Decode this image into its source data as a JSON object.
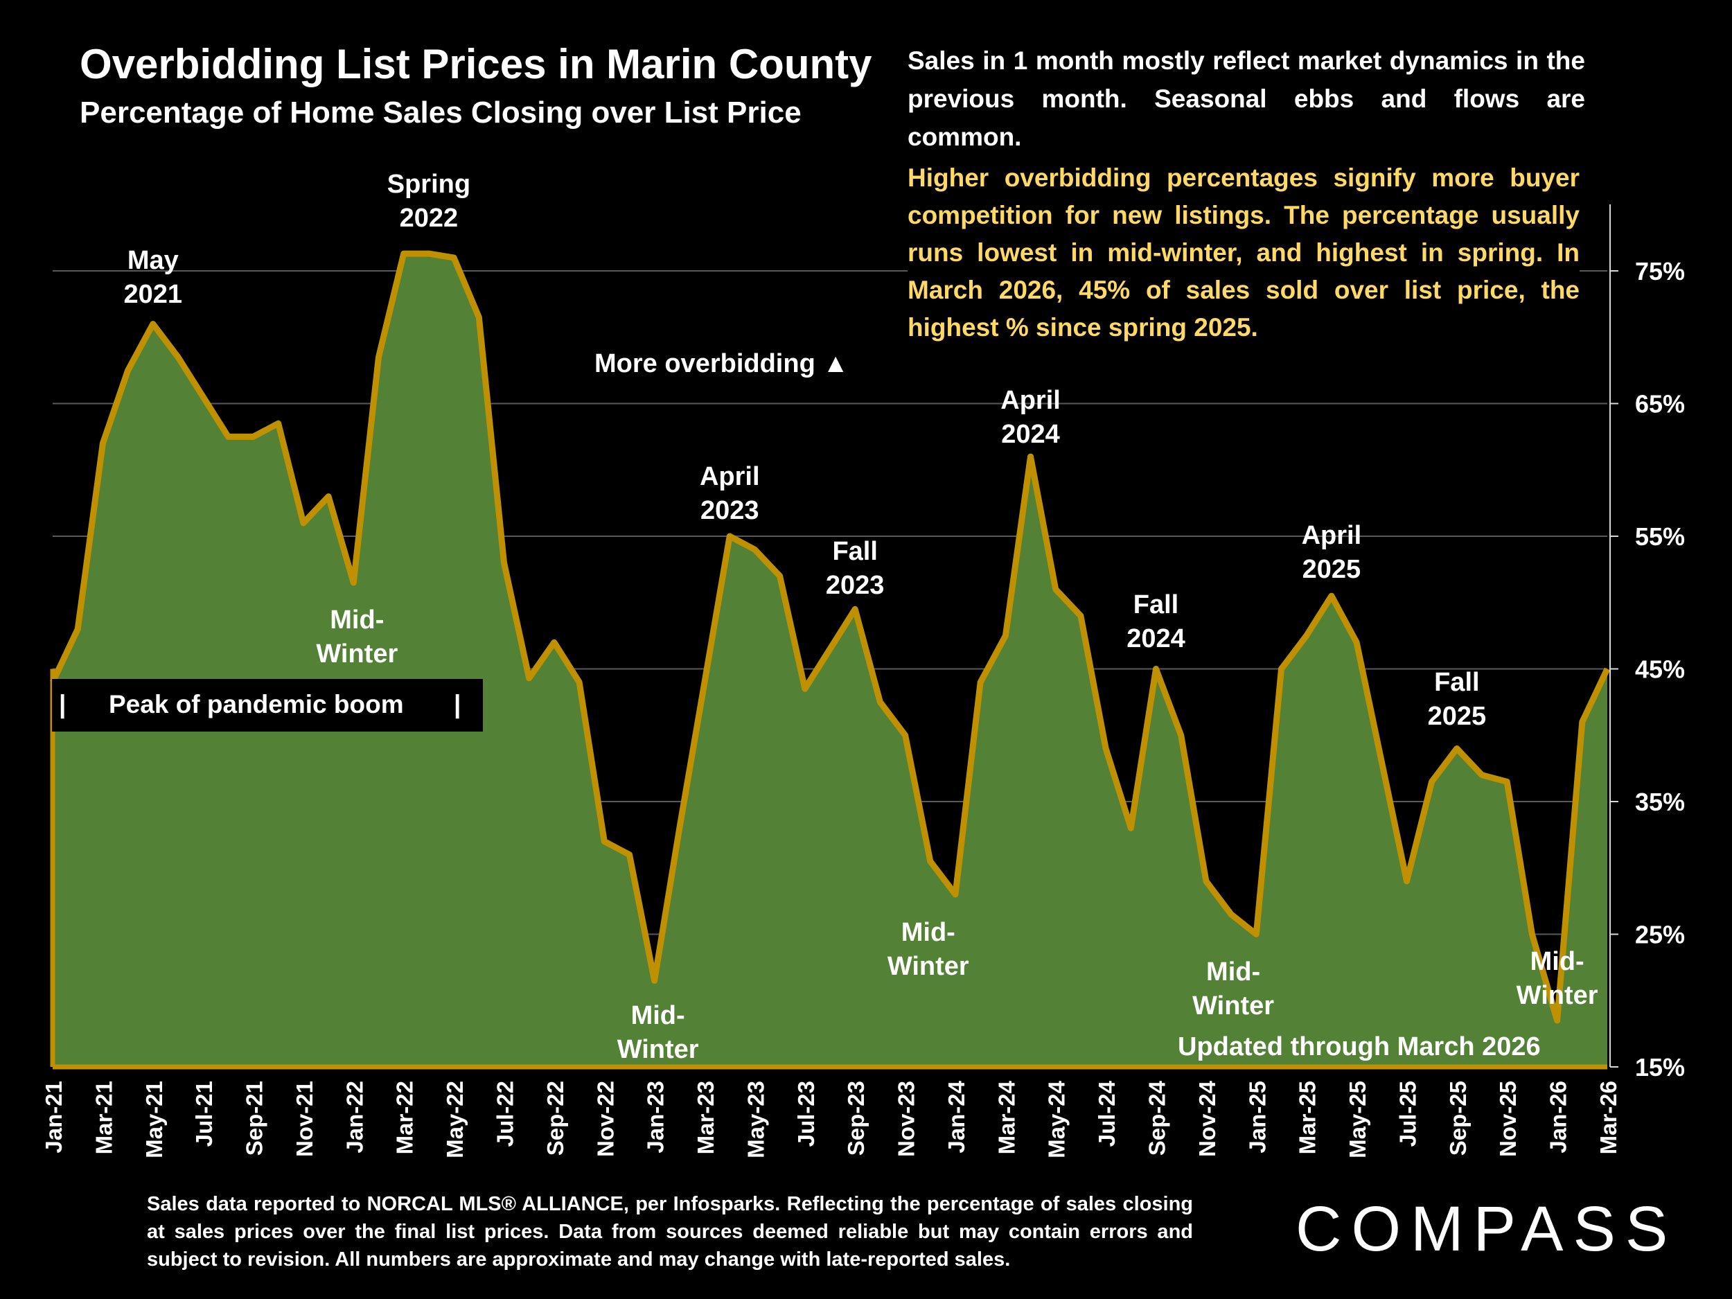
{
  "header": {
    "title": "Overbidding List Prices in Marin County",
    "subtitle": "Percentage of Home Sales Closing over List Price"
  },
  "notes": {
    "market_note": "Sales in 1 month mostly reflect market dynamics in the previous month. Seasonal ebbs and flows are common.",
    "overbidding_note": "Higher overbidding percentages signify more buyer competition for new listings. The percentage usually runs lowest in mid-winter, and highest in spring. In March 2026, 45% of sales sold over list price, the highest % since spring 2025."
  },
  "peak_label": {
    "left_bar": "|",
    "text": "Peak of pandemic boom",
    "right_bar": "|"
  },
  "footer": {
    "source": "Sales data reported to NORCAL MLS® ALLIANCE, per Infosparks. Reflecting the percentage of sales closing at sales prices over the final list prices. Data from sources deemed reliable but may contain errors and subject to revision. All numbers are approximate and may change with late-reported sales.",
    "logo": "COMPASS"
  },
  "colors": {
    "fill": "#538135",
    "line": "#BF9000",
    "highlight_text": "#FFD966",
    "background": "#000000"
  },
  "chart_data": {
    "type": "area",
    "title": "Overbidding List Prices in Marin County",
    "subtitle": "Percentage of Home Sales Closing over List Price",
    "y_axis_side": "right",
    "ylim": [
      15,
      80
    ],
    "yticks": [
      "15%",
      "25%",
      "35%",
      "45%",
      "55%",
      "65%",
      "75%"
    ],
    "ytick_values": [
      15,
      25,
      35,
      45,
      55,
      65,
      75
    ],
    "grid": true,
    "x_tick_labels": [
      "Jan-21",
      "Mar-21",
      "May-21",
      "Jul-21",
      "Sep-21",
      "Nov-21",
      "Jan-22",
      "Mar-22",
      "May-22",
      "Jul-22",
      "Sep-22",
      "Nov-22",
      "Jan-23",
      "Mar-23",
      "May-23",
      "Jul-23",
      "Sep-23",
      "Nov-23",
      "Jan-24",
      "Mar-24",
      "May-24",
      "Jul-24",
      "Sep-24",
      "Nov-24",
      "Jan-25",
      "Mar-25",
      "May-25",
      "Jul-25",
      "Sep-25",
      "Nov-25",
      "Jan-26",
      "Mar-26"
    ],
    "x": [
      "Jan-21",
      "Feb-21",
      "Mar-21",
      "Apr-21",
      "May-21",
      "Jun-21",
      "Jul-21",
      "Aug-21",
      "Sep-21",
      "Oct-21",
      "Nov-21",
      "Dec-21",
      "Jan-22",
      "Feb-22",
      "Mar-22",
      "Apr-22",
      "May-22",
      "Jun-22",
      "Jul-22",
      "Aug-22",
      "Sep-22",
      "Oct-22",
      "Nov-22",
      "Dec-22",
      "Jan-23",
      "Feb-23",
      "Mar-23",
      "Apr-23",
      "May-23",
      "Jun-23",
      "Jul-23",
      "Aug-23",
      "Sep-23",
      "Oct-23",
      "Nov-23",
      "Dec-23",
      "Jan-24",
      "Feb-24",
      "Mar-24",
      "Apr-24",
      "May-24",
      "Jun-24",
      "Jul-24",
      "Aug-24",
      "Sep-24",
      "Oct-24",
      "Nov-24",
      "Dec-24",
      "Jan-25",
      "Feb-25",
      "Mar-25",
      "Apr-25",
      "May-25",
      "Jun-25",
      "Jul-25",
      "Aug-25",
      "Sep-25",
      "Oct-25",
      "Nov-25",
      "Dec-25",
      "Jan-26",
      "Feb-26",
      "Mar-26"
    ],
    "series": [
      {
        "values": [
          44,
          48,
          62,
          67.5,
          71,
          68.5,
          65.5,
          62.5,
          62.5,
          63.5,
          56,
          58,
          51.5,
          68.5,
          76.3,
          76.3,
          76,
          71.5,
          53,
          44.3,
          47,
          44,
          32,
          31,
          21.5,
          33,
          44,
          55,
          54,
          52,
          43.5,
          46.5,
          49.5,
          42.5,
          40,
          30.5,
          28,
          44,
          47.5,
          61,
          51,
          49,
          39,
          33,
          45,
          40,
          29,
          26.5,
          25,
          45,
          47.5,
          50.5,
          47,
          38,
          29,
          36.5,
          39,
          37,
          36.5,
          25,
          18.5,
          41,
          45
        ]
      }
    ],
    "annotations": [
      {
        "label": "May 2021",
        "lines": [
          "May",
          "2021"
        ],
        "x": "May-21",
        "position": "above"
      },
      {
        "label": "Spring 2022",
        "lines": [
          "Spring",
          "2022"
        ],
        "x": "Apr-22",
        "position": "above"
      },
      {
        "label": "Mid-Winter",
        "lines": [
          "Mid-",
          "Winter"
        ],
        "x": "Jan-22",
        "position": "below"
      },
      {
        "label": "More overbidding ▲",
        "lines": [
          "More overbidding ▲"
        ],
        "x": "Apr-23",
        "position": "text"
      },
      {
        "label": "April 2023",
        "lines": [
          "April",
          "2023"
        ],
        "x": "Apr-23",
        "position": "above"
      },
      {
        "label": "Mid-Winter",
        "lines": [
          "Mid-",
          "Winter"
        ],
        "x": "Jan-23",
        "position": "below"
      },
      {
        "label": "Fall 2023",
        "lines": [
          "Fall",
          "2023"
        ],
        "x": "Sep-23",
        "position": "above"
      },
      {
        "label": "Mid-Winter",
        "lines": [
          "Mid-",
          "Winter"
        ],
        "x": "Dec-23",
        "position": "below"
      },
      {
        "label": "April 2024",
        "lines": [
          "April",
          "2024"
        ],
        "x": "Apr-24",
        "position": "above"
      },
      {
        "label": "Fall 2024",
        "lines": [
          "Fall",
          "2024"
        ],
        "x": "Sep-24",
        "position": "above"
      },
      {
        "label": "Mid-Winter",
        "lines": [
          "Mid-",
          "Winter"
        ],
        "x": "Dec-24",
        "position": "below"
      },
      {
        "label": "April 2025",
        "lines": [
          "April",
          "2025"
        ],
        "x": "Apr-25",
        "position": "above"
      },
      {
        "label": "Fall 2025",
        "lines": [
          "Fall",
          "2025"
        ],
        "x": "Sep-25",
        "position": "above"
      },
      {
        "label": "Mid-Winter",
        "lines": [
          "Mid-",
          "Winter"
        ],
        "x": "Jan-26",
        "position": "below"
      },
      {
        "label": "Updated through March 2026",
        "lines": [
          "Updated through March 2026"
        ],
        "x": "Mar-25",
        "position": "text"
      }
    ]
  }
}
